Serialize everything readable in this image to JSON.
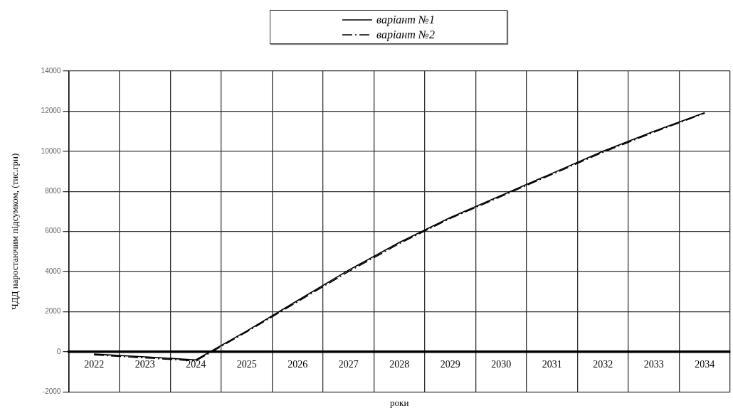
{
  "chart_data": {
    "type": "line",
    "xlabel": "роки",
    "ylabel": "ЧДД наростаючим підсумком, (тис.грн)",
    "categories": [
      "2022",
      "2023",
      "2024",
      "2025",
      "2026",
      "2027",
      "2028",
      "2029",
      "2030",
      "2031",
      "2032",
      "2033",
      "2034"
    ],
    "series": [
      {
        "name": "варіант №1",
        "color": "#000000",
        "line_style": "solid",
        "values": [
          -110,
          -250,
          -400,
          1040,
          2560,
          4070,
          5460,
          6700,
          7800,
          8900,
          10000,
          11000,
          11930
        ]
      },
      {
        "name": "варіант №2",
        "color": "#000000",
        "line_style": "dashed",
        "values": [
          -150,
          -300,
          -450,
          1000,
          2500,
          4000,
          5400,
          6650,
          7750,
          8850,
          9950,
          10950,
          11900
        ]
      }
    ],
    "ylim": [
      -2000,
      14000
    ],
    "yticks": [
      -2000,
      0,
      2000,
      4000,
      6000,
      8000,
      10000,
      12000,
      14000
    ],
    "grid": true,
    "legend": "top",
    "marker": "none"
  }
}
